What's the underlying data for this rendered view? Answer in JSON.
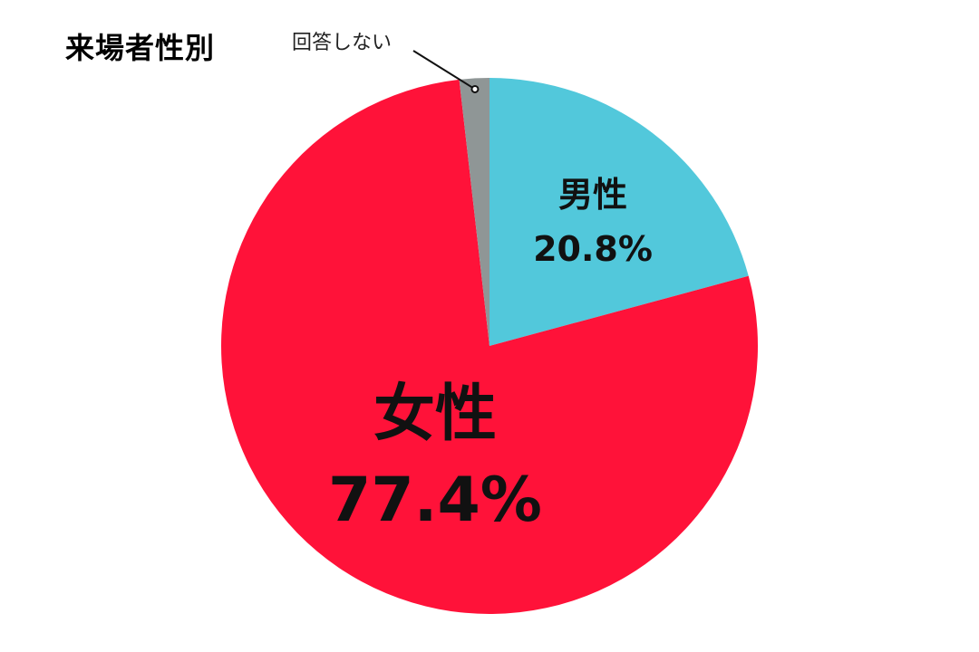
{
  "chart_data": {
    "type": "pie",
    "title": "来場者性別",
    "slices": [
      {
        "label": "男性",
        "value": 20.8,
        "value_label": "20.8%",
        "color": "#52c8db"
      },
      {
        "label": "女性",
        "value": 77.4,
        "value_label": "77.4%",
        "color": "#ff1239"
      },
      {
        "label": "回答しない",
        "value": 1.8,
        "value_label": "",
        "color": "#8f9696"
      }
    ],
    "start_angle_deg": 0,
    "direction": "clockwise",
    "legend": "none"
  }
}
